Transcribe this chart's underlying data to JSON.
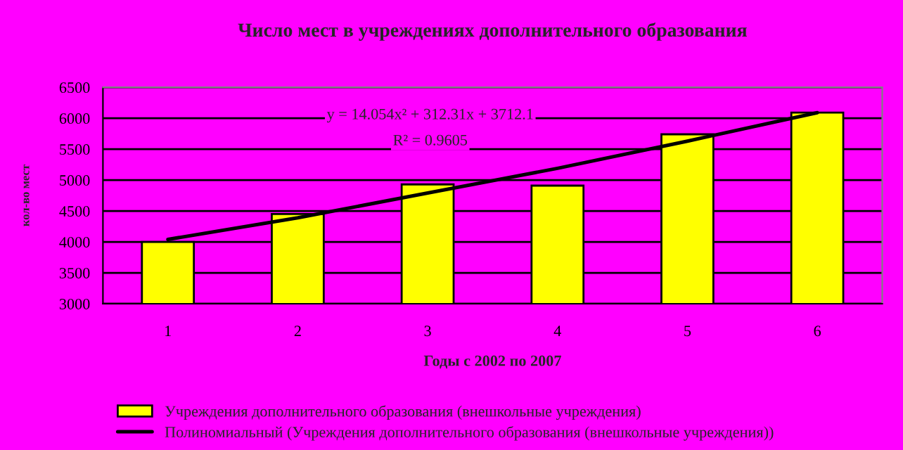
{
  "chart_data": {
    "type": "bar",
    "title": "Число мест в учреждениях дополнительного образования",
    "xlabel": "Годы с 2002 по 2007",
    "ylabel": "кол-во мест",
    "categories": [
      "1",
      "2",
      "3",
      "4",
      "5",
      "6"
    ],
    "series": [
      {
        "name": "Учреждения дополнительного образования (внешкольные учреждения)",
        "color": "#ffff00",
        "values": [
          4000,
          4450,
          4930,
          4910,
          5740,
          6090
        ]
      },
      {
        "name": "Полиномиальный (Учреждения дополнительного образования (внешкольные учреждения))",
        "type": "line",
        "color": "#000000",
        "x": [
          "1",
          "2",
          "3",
          "4",
          "5",
          "6"
        ],
        "values": [
          4040,
          4390,
          4790,
          5190,
          5630,
          6090
        ]
      }
    ],
    "annotations": [
      "y = 14.054x² + 312.31x + 3712.1",
      "R² = 0.9605"
    ],
    "ylim": [
      3000,
      6500
    ],
    "yticks": [
      3000,
      3500,
      4000,
      4500,
      5000,
      5500,
      6000,
      6500
    ],
    "grid": "y",
    "legend": "bottom"
  }
}
